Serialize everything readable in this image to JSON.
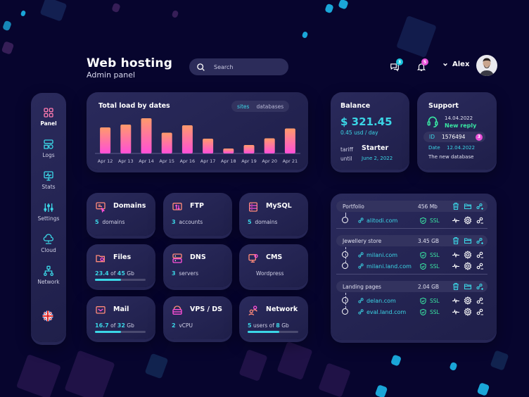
{
  "header": {
    "title": "Web hosting",
    "subtitle": "Admin panel",
    "search_placeholder": "Search",
    "messages_badge": "3",
    "notifications_badge": "5",
    "user_name": "Alex"
  },
  "sidebar": {
    "items": [
      {
        "label": "Panel",
        "icon": "grid-icon",
        "active": true
      },
      {
        "label": "Logs",
        "icon": "logs-icon"
      },
      {
        "label": "Stats",
        "icon": "monitor-stats-icon"
      },
      {
        "label": "Settings",
        "icon": "sliders-icon"
      },
      {
        "label": "Cloud",
        "icon": "cloud-icon"
      },
      {
        "label": "Network",
        "icon": "network-icon"
      }
    ],
    "language": "uk-flag-icon"
  },
  "chart": {
    "title": "Total load by dates",
    "toggle": [
      "sites",
      "databases"
    ],
    "active_toggle": "sites"
  },
  "chart_data": {
    "type": "bar",
    "title": "Total load by dates",
    "categories": [
      "Apr 12",
      "Apr 13",
      "Apr 14",
      "Apr 15",
      "Apr 16",
      "Apr 17",
      "Apr 18",
      "Apr 19",
      "Apr 20",
      "Apr 21"
    ],
    "values": [
      74,
      82,
      100,
      59,
      80,
      42,
      14,
      24,
      43,
      71
    ],
    "ylim": [
      0,
      100
    ],
    "grid": false,
    "colors": {
      "top": "#ff9a6b",
      "bottom": "#ff4fd8"
    }
  },
  "balance": {
    "title": "Balance",
    "amount": "$ 321.45",
    "rate": "0.45 usd / day",
    "tariff_label": "tariff",
    "tariff_value": "Starter",
    "until_label": "until",
    "until_value": "June 2, 2022"
  },
  "support": {
    "title": "Support",
    "date": "14.04.2022",
    "status": "New reply",
    "id_label": "ID",
    "id_value": "1576494",
    "id_badge": "3",
    "date_label": "Date",
    "date_value": "12.04.2022",
    "topic": "The new database"
  },
  "tiles": [
    {
      "title": "Domains",
      "count": "5",
      "unit": "domains",
      "icon": "domains-icon"
    },
    {
      "title": "FTP",
      "count": "3",
      "unit": "accounts",
      "icon": "ftp-icon"
    },
    {
      "title": "MySQL",
      "count": "5",
      "unit": "domains",
      "icon": "mysql-icon"
    },
    {
      "title": "Files",
      "used": "23.4",
      "of": "of",
      "total": "45",
      "unit": "Gb",
      "progress": 0.52,
      "icon": "files-icon"
    },
    {
      "title": "DNS",
      "count": "3",
      "unit": "servers",
      "icon": "dns-icon"
    },
    {
      "title": "CMS",
      "unit": "Wordpress",
      "icon": "cms-icon"
    },
    {
      "title": "Mail",
      "used": "16.7",
      "of": "of",
      "total": "32",
      "unit": "Gb",
      "progress": 0.52,
      "icon": "mail-icon"
    },
    {
      "title": "VPS / DS",
      "count": "2",
      "unit": "vCPU",
      "icon": "vps-icon"
    },
    {
      "title": "Network",
      "used": "5",
      "of": "users of",
      "total": "8",
      "unit": "Gb",
      "progress": 0.62,
      "icon": "network-users-icon"
    }
  ],
  "sites": {
    "groups": [
      {
        "name": "Portfolio",
        "size": "456 Mb",
        "rows": [
          {
            "domain": "alitodi.com",
            "ssl": "SSL"
          }
        ]
      },
      {
        "name": "Jewellery store",
        "size": "3.45 GB",
        "rows": [
          {
            "domain": "milani.com",
            "ssl": "SSL"
          },
          {
            "domain": "milani.land.com",
            "ssl": "SSL"
          }
        ]
      },
      {
        "name": "Landing pages",
        "size": "2.04 GB",
        "rows": [
          {
            "domain": "delan.com",
            "ssl": "SSL"
          },
          {
            "domain": "eval.land.com",
            "ssl": "SSL"
          }
        ]
      }
    ]
  },
  "colors": {
    "accent": "#3bd6e6",
    "pink": "#ff4fd8",
    "green": "#39e7a3",
    "orange": "#ff9a6b",
    "bg": "#07052e",
    "card": "#25254f"
  }
}
